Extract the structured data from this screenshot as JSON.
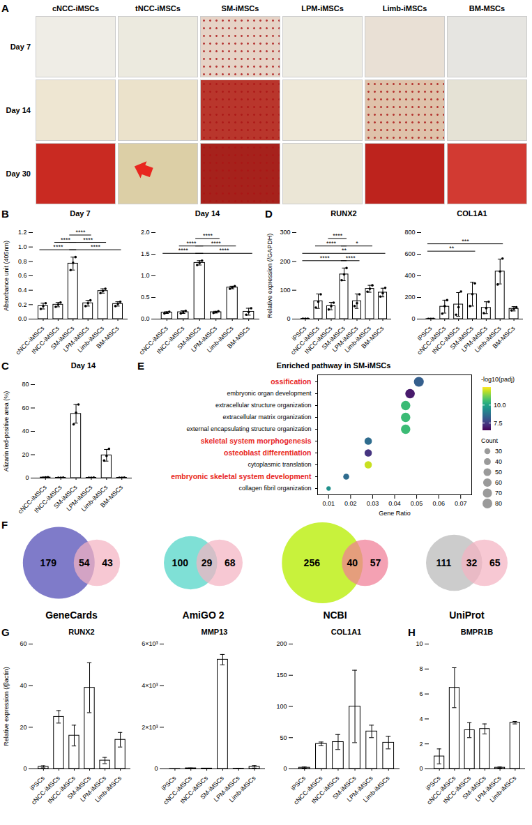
{
  "image_grid": {
    "panel": "A",
    "columns": [
      "cNCC-iMSCs",
      "tNCC-iMSCs",
      "SM-iMSCs",
      "LPM-iMSCs",
      "Limb-iMSCs",
      "BM-MSCs"
    ],
    "rows": [
      "Day 7",
      "Day 14",
      "Day 30"
    ]
  },
  "chart_data": [
    {
      "panel": "B",
      "type": "bar",
      "title": "Day 7",
      "ylabel": "Absorbance unit (405nm)",
      "categories": [
        "cNCC-iMSCs",
        "tNCC-iMSCs",
        "SM-iMSCs",
        "LPM-iMSCs",
        "Limb-iMSCs",
        "BM-MSCs"
      ],
      "values": [
        0.18,
        0.2,
        0.77,
        0.22,
        0.39,
        0.21
      ],
      "errors": [
        0.04,
        0.03,
        0.09,
        0.04,
        0.03,
        0.03
      ],
      "points": [
        [
          0.14,
          0.18,
          0.22
        ],
        [
          0.17,
          0.2,
          0.23
        ],
        [
          0.68,
          0.78,
          0.86
        ],
        [
          0.18,
          0.22,
          0.26
        ],
        [
          0.36,
          0.39,
          0.42
        ],
        [
          0.18,
          0.21,
          0.24
        ]
      ],
      "ylim": [
        0,
        1.2
      ],
      "yticks": [
        {
          "value": 0,
          "label": "0.0"
        },
        0.2,
        0.4,
        0.6,
        0.8,
        {
          "value": 1,
          "label": "1.0"
        },
        1.2
      ],
      "color": "#ffffff",
      "grid": false,
      "significance": [
        {
          "from": "cNCC-iMSCs",
          "to": "SM-iMSCs",
          "label": "****"
        },
        {
          "from": "SM-iMSCs",
          "to": "BM-MSCs",
          "label": "****"
        },
        {
          "from": "tNCC-iMSCs",
          "to": "SM-iMSCs",
          "label": "****"
        },
        {
          "from": "SM-iMSCs",
          "to": "Limb-iMSCs",
          "label": "****"
        },
        {
          "from": "SM-iMSCs",
          "to": "LPM-iMSCs",
          "label": "****"
        }
      ]
    },
    {
      "type": "bar",
      "title": "Day 14",
      "categories": [
        "cNCC-iMSCs",
        "tNCC-iMSCs",
        "SM-iMSCs",
        "LPM-iMSCs",
        "Limb-iMSCs",
        "BM-MSCs"
      ],
      "values": [
        0.15,
        0.16,
        1.3,
        0.16,
        0.73,
        0.17
      ],
      "errors": [
        0.02,
        0.03,
        0.05,
        0.02,
        0.03,
        0.08
      ],
      "points": [
        [
          0.13,
          0.15,
          0.17
        ],
        [
          0.13,
          0.16,
          0.19
        ],
        [
          1.25,
          1.3,
          1.35
        ],
        [
          0.14,
          0.16,
          0.18
        ],
        [
          0.7,
          0.73,
          0.76
        ],
        [
          0.1,
          0.16,
          0.25
        ]
      ],
      "ylim": [
        0,
        2
      ],
      "yticks": [
        {
          "value": 0,
          "label": "0.0"
        },
        0.5,
        {
          "value": 1,
          "label": "1.0"
        },
        1.5,
        {
          "value": 2,
          "label": "2.0"
        }
      ],
      "color": "#ffffff",
      "grid": false,
      "significance": [
        {
          "from": "cNCC-iMSCs",
          "to": "SM-iMSCs",
          "label": "****"
        },
        {
          "from": "SM-iMSCs",
          "to": "BM-MSCs",
          "label": "****"
        },
        {
          "from": "tNCC-iMSCs",
          "to": "SM-iMSCs",
          "label": "****"
        },
        {
          "from": "SM-iMSCs",
          "to": "Limb-iMSCs",
          "label": "****"
        },
        {
          "from": "SM-iMSCs",
          "to": "LPM-iMSCs",
          "label": "****"
        }
      ]
    },
    {
      "panel": "C",
      "type": "bar",
      "title": "Day 14",
      "ylabel": "Alizarin red-positive area (%)",
      "categories": [
        "cNCC-iMSCs",
        "tNCC-iMSCs",
        "SM-iMSCs",
        "LPM-iMSCs",
        "Limb-iMSCs",
        "BM-MSCs"
      ],
      "values": [
        0.5,
        0.3,
        55,
        0.3,
        19.5,
        0.3
      ],
      "errors": [
        0.2,
        0.1,
        8,
        0.1,
        5,
        0.1
      ],
      "points": [
        [
          0.3,
          0.5,
          0.7
        ],
        [
          0.2,
          0.3,
          0.4
        ],
        [
          46,
          56,
          63
        ],
        [
          0.2,
          0.3,
          0.4
        ],
        [
          15,
          19,
          25
        ],
        [
          0.2,
          0.3,
          0.4
        ]
      ],
      "ylim": [
        0,
        80
      ],
      "yticks": [
        0,
        20,
        40,
        60,
        80
      ],
      "color": "#ffffff",
      "grid": false
    },
    {
      "panel": "D",
      "type": "bar",
      "title": "RUNX2",
      "ylabel": "Relative expression (/GAPDH)",
      "categories": [
        "iPSCs",
        "cNCC-iMSCs",
        "tNCC-iMSCs",
        "SM-iMSCs",
        "LPM-iMSCs",
        "Limb-iMSCs",
        "BM-MSCs"
      ],
      "values": [
        1,
        62,
        45,
        155,
        62,
        105,
        92
      ],
      "errors": [
        0.5,
        25,
        13,
        22,
        25,
        12,
        15
      ],
      "points": [
        [
          0.8,
          1,
          1.2
        ],
        [
          40,
          60,
          86
        ],
        [
          33,
          45,
          57
        ],
        [
          135,
          155,
          177
        ],
        [
          45,
          55,
          86
        ],
        [
          95,
          105,
          117
        ],
        [
          78,
          90,
          108
        ]
      ],
      "ylim": [
        0,
        300
      ],
      "yticks": [
        0,
        100,
        200,
        300
      ],
      "color": "#ffffff",
      "grid": false,
      "significance": [
        {
          "from": "iPSCs",
          "to": "SM-iMSCs",
          "label": "****"
        },
        {
          "from": "iPSCs",
          "to": "BM-MSCs",
          "label": "**"
        },
        {
          "from": "cNCC-iMSCs",
          "to": "SM-iMSCs",
          "label": "****"
        },
        {
          "from": "tNCC-iMSCs",
          "to": "SM-iMSCs",
          "label": "****"
        },
        {
          "from": "SM-iMSCs",
          "to": "LPM-iMSCs",
          "label": "****"
        },
        {
          "from": "SM-iMSCs",
          "to": "Limb-iMSCs",
          "label": "*"
        }
      ]
    },
    {
      "type": "bar",
      "title": "COL1A1",
      "categories": [
        "iPSCs",
        "cNCC-iMSCs",
        "tNCC-iMSCs",
        "SM-iMSCs",
        "LPM-iMSCs",
        "Limb-iMSCs",
        "BM-MSCs"
      ],
      "values": [
        1,
        115,
        135,
        230,
        105,
        440,
        95
      ],
      "errors": [
        0.5,
        60,
        110,
        110,
        55,
        115,
        20
      ],
      "points": [
        [
          0.8,
          1,
          1.2
        ],
        [
          50,
          120,
          175
        ],
        [
          40,
          110,
          255
        ],
        [
          120,
          230,
          330
        ],
        [
          55,
          100,
          160
        ],
        [
          320,
          440,
          560
        ],
        [
          80,
          95,
          110
        ]
      ],
      "ylim": [
        0,
        800
      ],
      "yticks": [
        0,
        200,
        400,
        600,
        800
      ],
      "color": "#ffffff",
      "grid": false,
      "significance": [
        {
          "from": "iPSCs",
          "to": "SM-iMSCs",
          "label": "**"
        },
        {
          "from": "iPSCs",
          "to": "Limb-iMSCs",
          "label": "***"
        }
      ]
    },
    {
      "panel": "E",
      "type": "scatter",
      "title": "Enriched pathway in SM-iMSCs",
      "xlabel": "Gene Ratio",
      "categories": [
        "ossification",
        "embryonic organ development",
        "extracellular structure organization",
        "extracellular matrix organization",
        "external encapsulating structure organization",
        "skeletal system morphogenesis",
        "osteoblast differentiation",
        "cytoplasmic translation",
        "embryonic skeletal system development",
        "collagen fibril organization"
      ],
      "values": [
        0.051,
        0.047,
        0.045,
        0.045,
        0.045,
        0.028,
        0.028,
        0.028,
        0.018,
        0.01
      ],
      "sizes": [
        82,
        76,
        73,
        73,
        73,
        46,
        45,
        45,
        30,
        16
      ],
      "color_values": [
        8.3,
        6.9,
        10.6,
        10.6,
        10.6,
        8.6,
        7.4,
        12.0,
        8.6,
        9.5
      ],
      "tick_label_colors": [
        "#e8271f",
        "#000000",
        "#000000",
        "#000000",
        "#000000",
        "#e8271f",
        "#e8271f",
        "#000000",
        "#e8271f",
        "#000000"
      ],
      "xlim": [
        0.005,
        0.075
      ],
      "xticks": [
        0.01,
        0.02,
        0.03,
        0.04,
        0.05,
        0.06,
        0.07
      ],
      "grid": false,
      "colorbar": {
        "title": "-log10(padj)",
        "range": [
          6.5,
          12.5
        ],
        "ticks": [
          7.5,
          {
            "value": 10,
            "label": "10.0"
          }
        ]
      },
      "size_legend": {
        "title": "Count",
        "values": [
          30,
          40,
          50,
          60,
          70,
          80
        ]
      }
    },
    {
      "panel": "G",
      "type": "bar",
      "title": "RUNX2",
      "ylabel": "Relative expression (/βactin)",
      "categories": [
        "iPSCs",
        "cNCC-iMSCs",
        "tNCC-iMSCs",
        "SM-iMSCs",
        "LPM-iMSCs",
        "Limb-iMSCs"
      ],
      "values": [
        1,
        25,
        16,
        39,
        4,
        14
      ],
      "errors": [
        0.5,
        3,
        5,
        12,
        1.5,
        3.5
      ],
      "ylim": [
        0,
        60
      ],
      "yticks": [
        0,
        20,
        40,
        60
      ],
      "color": "#ffffff",
      "grid": false
    },
    {
      "type": "bar",
      "title": "MMP13",
      "categories": [
        "iPSCs",
        "cNCC-iMSCs",
        "tNCC-iMSCs",
        "SM-iMSCs",
        "LPM-iMSCs",
        "Limb-iMSCs"
      ],
      "values": [
        1,
        30,
        20,
        5250,
        10,
        100
      ],
      "errors": [
        0.5,
        10,
        8,
        250,
        5,
        60
      ],
      "ylim": [
        0,
        6000
      ],
      "yticks": [
        0,
        {
          "value": 2000,
          "label": "2×10³"
        },
        {
          "value": 4000,
          "label": "4×10³"
        },
        {
          "value": 6000,
          "label": "6×10³"
        }
      ],
      "color": "#ffffff",
      "grid": false
    },
    {
      "type": "bar",
      "title": "COL1A1",
      "categories": [
        "iPSCs",
        "cNCC-iMSCs",
        "tNCC-iMSCs",
        "SM-iMSCs",
        "LPM-iMSCs",
        "Limb-iMSCs"
      ],
      "values": [
        2,
        40,
        43,
        100,
        60,
        42
      ],
      "errors": [
        1,
        3,
        12,
        58,
        10,
        10
      ],
      "ylim": [
        0,
        200
      ],
      "yticks": [
        0,
        50,
        100,
        150,
        200
      ],
      "color": "#ffffff",
      "grid": false
    },
    {
      "panel": "H",
      "type": "bar",
      "title": "BMPR1B",
      "categories": [
        "iPSCs",
        "cNCC-iMSCs",
        "tNCC-iMSCs",
        "SM-iMSCs",
        "LPM-iMSCs",
        "Limb-iMSCs"
      ],
      "values": [
        1,
        6.5,
        3.1,
        3.2,
        0.1,
        3.7
      ],
      "errors": [
        0.6,
        1.6,
        0.6,
        0.4,
        0.05,
        0.1
      ],
      "ylim": [
        0,
        10
      ],
      "yticks": [
        0,
        2,
        4,
        6,
        8,
        10
      ],
      "color": "#ffffff",
      "grid": false
    }
  ],
  "venn_diagrams": {
    "panel": "F",
    "diagrams": [
      {
        "name": "GeneCards",
        "values": [
          179,
          54,
          43
        ],
        "colors": [
          "#7f7bc9",
          "#f4b3c2"
        ]
      },
      {
        "name": "AmiGO 2",
        "values": [
          100,
          29,
          68
        ],
        "colors": [
          "#7fe0d6",
          "#f4b3c2"
        ]
      },
      {
        "name": "NCBI",
        "values": [
          256,
          40,
          57
        ],
        "colors": [
          "#c8f23c",
          "#f07d96"
        ]
      },
      {
        "name": "UniProt",
        "values": [
          111,
          32,
          65
        ],
        "colors": [
          "#cccccc",
          "#f4b3c2"
        ]
      }
    ]
  }
}
